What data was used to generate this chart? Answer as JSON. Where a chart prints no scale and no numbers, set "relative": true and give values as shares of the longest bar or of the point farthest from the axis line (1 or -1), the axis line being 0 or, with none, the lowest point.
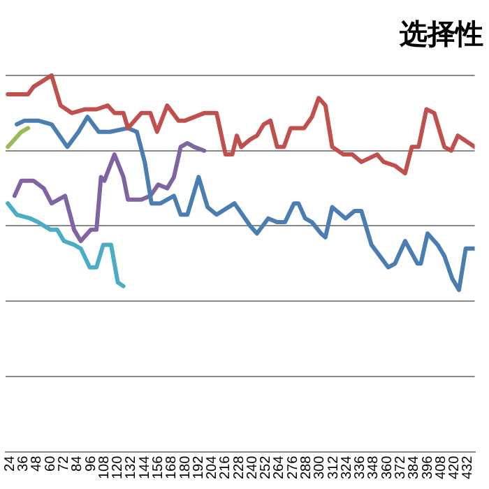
{
  "chart_data": {
    "type": "line",
    "title": "选择性",
    "relative": true,
    "grid": "y",
    "legend": false,
    "marker": "none",
    "line_style": "solid",
    "xlim": [
      20,
      438
    ],
    "xticks": [
      24,
      36,
      48,
      60,
      72,
      84,
      96,
      108,
      120,
      132,
      144,
      156,
      168,
      180,
      192,
      204,
      216,
      228,
      240,
      252,
      264,
      276,
      288,
      300,
      312,
      324,
      336,
      348,
      360,
      372,
      384,
      396,
      408,
      420,
      432
    ],
    "series": [
      {
        "color": "#c0504d",
        "x": [
          22,
          34,
          40,
          45,
          61,
          69,
          79,
          91,
          101,
          111,
          117,
          125,
          129,
          141,
          149,
          155,
          164,
          174,
          180,
          197,
          208,
          216,
          222,
          226,
          230,
          238,
          244,
          250,
          256,
          262,
          268,
          274,
          286,
          293,
          299,
          305,
          311,
          321,
          329,
          337,
          351,
          357,
          367,
          376,
          382,
          388,
          395,
          402,
          411,
          417,
          423,
          428,
          438
        ],
        "values": [
          0.95,
          0.95,
          0.95,
          0.97,
          1,
          0.92,
          0.9,
          0.91,
          0.91,
          0.92,
          0.9,
          0.9,
          0.86,
          0.9,
          0.9,
          0.85,
          0.92,
          0.88,
          0.88,
          0.9,
          0.9,
          0.79,
          0.79,
          0.84,
          0.81,
          0.83,
          0.84,
          0.87,
          0.88,
          0.81,
          0.81,
          0.86,
          0.86,
          0.89,
          0.94,
          0.92,
          0.81,
          0.79,
          0.79,
          0.77,
          0.79,
          0.77,
          0.76,
          0.74,
          0.81,
          0.81,
          0.91,
          0.9,
          0.81,
          0.8,
          0.84,
          0.83,
          0.81
        ]
      },
      {
        "color": "#4a7eb0",
        "x": [
          30,
          37,
          49,
          61,
          75,
          85,
          93,
          103,
          113,
          129,
          137,
          144,
          150,
          158,
          170,
          176,
          182,
          192,
          200,
          208,
          224,
          238,
          244,
          254,
          262,
          269,
          277,
          281,
          287,
          293,
          301,
          305,
          311,
          323,
          331,
          337,
          346,
          361,
          367,
          376,
          387,
          390,
          396,
          405,
          411,
          418,
          424,
          430,
          438
        ],
        "values": [
          0.87,
          0.88,
          0.88,
          0.87,
          0.81,
          0.85,
          0.89,
          0.85,
          0.85,
          0.86,
          0.85,
          0.77,
          0.66,
          0.66,
          0.68,
          0.63,
          0.63,
          0.73,
          0.65,
          0.63,
          0.66,
          0.6,
          0.58,
          0.62,
          0.61,
          0.61,
          0.66,
          0.66,
          0.62,
          0.61,
          0.58,
          0.57,
          0.65,
          0.62,
          0.64,
          0.64,
          0.55,
          0.49,
          0.5,
          0.56,
          0.5,
          0.5,
          0.58,
          0.55,
          0.52,
          0.46,
          0.43,
          0.54,
          0.54
        ]
      },
      {
        "color": "#8064a2",
        "x": [
          28,
          34,
          45,
          54,
          61,
          73,
          81,
          87,
          96,
          101,
          105,
          108,
          117,
          125,
          129,
          141,
          149,
          156,
          164,
          170,
          176,
          182,
          188,
          197
        ],
        "values": [
          0.68,
          0.72,
          0.72,
          0.7,
          0.66,
          0.68,
          0.59,
          0.56,
          0.59,
          0.59,
          0.73,
          0.72,
          0.79,
          0.73,
          0.67,
          0.67,
          0.68,
          0.71,
          0.7,
          0.73,
          0.81,
          0.82,
          0.81,
          0.8
        ]
      },
      {
        "color": "#4bacc6",
        "x": [
          22,
          30,
          42,
          49,
          60,
          66,
          72,
          81,
          87,
          95,
          101,
          107,
          114,
          120,
          125
        ],
        "values": [
          0.66,
          0.63,
          0.62,
          0.61,
          0.59,
          0.59,
          0.56,
          0.55,
          0.54,
          0.49,
          0.49,
          0.55,
          0.55,
          0.45,
          0.44
        ]
      },
      {
        "color": "#9bbb59",
        "x": [
          22,
          28,
          34,
          40
        ],
        "values": [
          0.81,
          0.83,
          0.85,
          0.86
        ]
      }
    ]
  }
}
